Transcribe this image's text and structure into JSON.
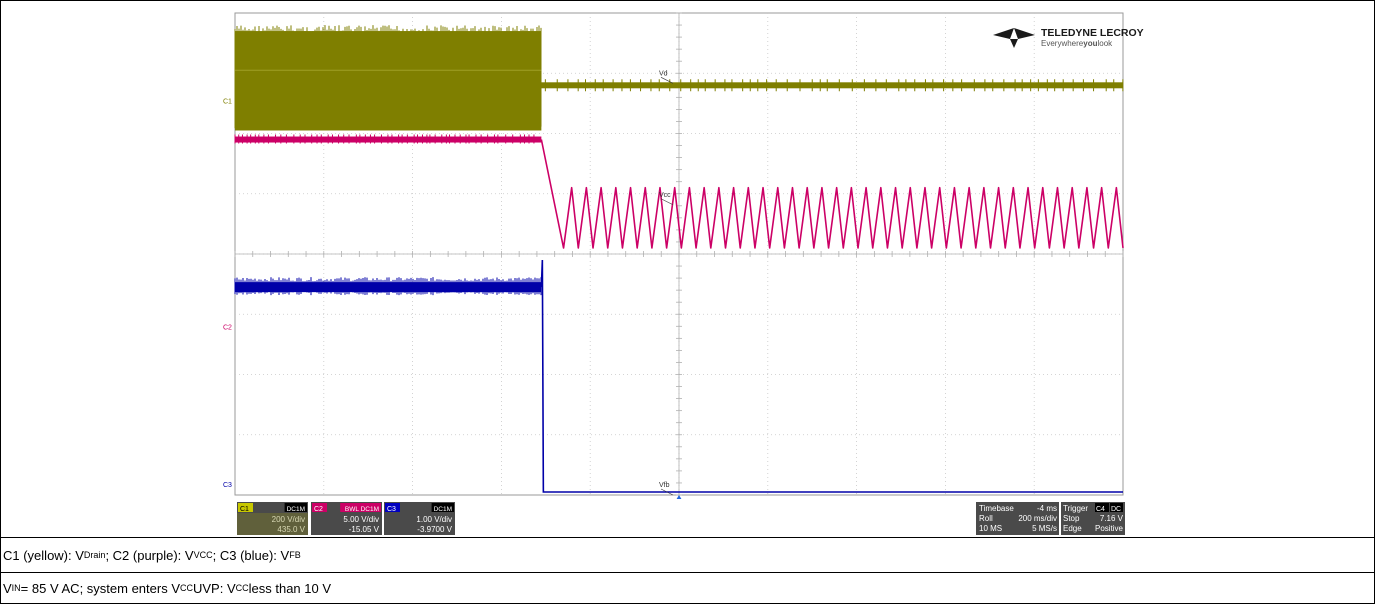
{
  "logo": {
    "brand": "TELEDYNE LECROY",
    "tagline_pre": "Everywhere",
    "tagline_bold": "you",
    "tagline_post": "look"
  },
  "chart_data": {
    "type": "line",
    "title": "",
    "xlabel": "",
    "ylabel": "",
    "grid": true,
    "x_divisions": 10,
    "y_divisions": 8,
    "time_per_div_ms": 200,
    "transition_x_div": 3.45,
    "series": [
      {
        "id": "C1",
        "trace_label": "Vd",
        "marker": "C1",
        "color": "#7f7f00",
        "before": "switching",
        "after": "flat"
      },
      {
        "id": "C2",
        "trace_label": "Vcc",
        "marker": "C2",
        "color": "#cc0066",
        "before": "flat",
        "after": "sawtooth",
        "sawtooth_periods": 38
      },
      {
        "id": "C3",
        "trace_label": "Vfb",
        "marker": "C3",
        "color": "#0000a8",
        "before": "noisy",
        "after": "flat"
      }
    ]
  },
  "status_bar": {
    "channels": [
      {
        "name": "C1",
        "coupling": "DC1M",
        "vdiv": "200 V/div",
        "offset": "435.0 V",
        "color": "#c8c800"
      },
      {
        "name": "C2",
        "coupling": "BWL DC1M",
        "vdiv": "5.00 V/div",
        "offset": "-15.05 V",
        "color": "#cc0066"
      },
      {
        "name": "C3",
        "coupling": "DC1M",
        "vdiv": "1.00 V/div",
        "offset": "-3.9700 V",
        "color": "#0000c0"
      }
    ],
    "timebase": {
      "label": "Timebase",
      "delay": "-4 ms",
      "mode": "Roll",
      "tdiv": "200 ms/div",
      "samples": "10 MS",
      "rate": "5 MS/s"
    },
    "trigger": {
      "label": "Trigger",
      "source": "C4",
      "coupling": "DC",
      "state": "Stop",
      "level": "7.16 V",
      "type": "Edge",
      "slope": "Positive"
    }
  },
  "captions": {
    "line1": {
      "c1": "C1 (yellow): V",
      "c1_sub": "Drain",
      "c2": "; C2 (purple): V",
      "c2_sub": "VCC",
      "c3": "; C3 (blue): V",
      "c3_sub": "FB"
    },
    "line2": {
      "a": "V",
      "a_sub": "IN",
      "b": " = 85 V AC; system enters V",
      "b_sub": "CC",
      "c": " UVP: V",
      "c_sub": "CC",
      "d": " less than 10 V"
    }
  }
}
